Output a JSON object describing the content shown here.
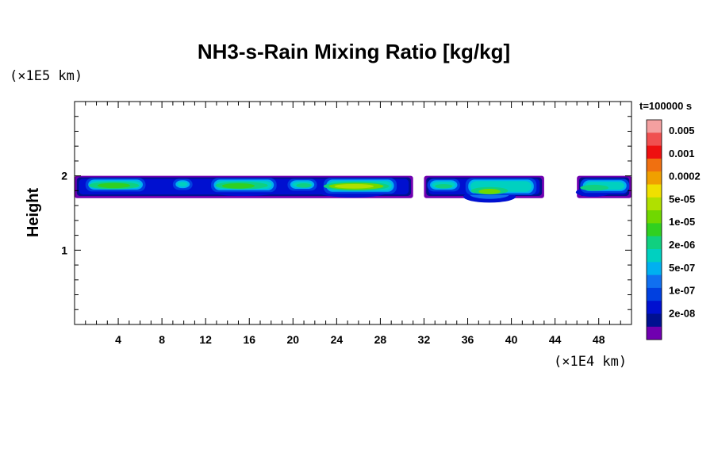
{
  "chart_data": {
    "type": "heatmap",
    "title": "NH3-s-Rain Mixing Ratio [kg/kg]",
    "xlabel": "",
    "ylabel": "Height",
    "x_unit": "(×1E4 km)",
    "y_unit": "(×1E5 km)",
    "time_label": "t=100000 s",
    "xlim": [
      0,
      51
    ],
    "ylim": [
      0,
      3
    ],
    "x_ticks": [
      4,
      8,
      12,
      16,
      20,
      24,
      28,
      32,
      36,
      40,
      44,
      48
    ],
    "y_ticks": [
      1,
      2
    ],
    "colorbar": {
      "labels": [
        "0.005",
        "0.001",
        "0.0002",
        "5e-05",
        "1e-05",
        "2e-06",
        "5e-07",
        "1e-07",
        "2e-08"
      ],
      "colors": [
        "#f4a0a0",
        "#f05050",
        "#ee1010",
        "#f07010",
        "#f0a000",
        "#f0e000",
        "#b0e000",
        "#70d800",
        "#30d020",
        "#10d080",
        "#00d0c0",
        "#00b0f0",
        "#1070f0",
        "#0040e0",
        "#0010d0",
        "#001090",
        "#7000b0"
      ]
    },
    "layer": {
      "y_bottom_approx": 1.7,
      "y_top_approx": 2.0,
      "segments": [
        {
          "x_start": 0,
          "x_end": 31
        },
        {
          "x_start": 32,
          "x_end": 43
        },
        {
          "x_start": 46,
          "x_end": 51
        }
      ],
      "peak_regions": [
        {
          "x": 3.5,
          "value": "1e-05"
        },
        {
          "x": 14.5,
          "value": "1e-05"
        },
        {
          "x": 25.5,
          "value": "5e-05"
        },
        {
          "x": 38,
          "value": "1e-05"
        },
        {
          "x": 47.5,
          "value": "2e-06"
        }
      ]
    }
  }
}
